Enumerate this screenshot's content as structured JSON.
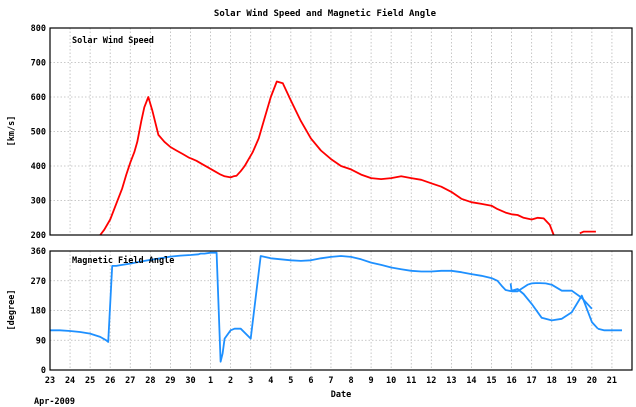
{
  "chart_data": [
    {
      "type": "line",
      "title": "Solar Wind Speed and Magnetic Field Angle",
      "panel_label": "Solar Wind Speed",
      "ylabel": "[km/s]",
      "ylim": [
        200,
        800
      ],
      "yticks": [
        "200",
        "300",
        "400",
        "500",
        "600",
        "700",
        "800"
      ],
      "xlim": [
        0,
        29
      ],
      "grid": true,
      "color": "#ff0000",
      "series": [
        {
          "x": [
            2.5,
            2.7,
            3.0,
            3.3,
            3.6,
            3.8,
            4.0,
            4.2,
            4.35,
            4.55,
            4.7,
            4.9,
            5.1,
            5.4,
            5.7,
            6.0,
            6.3,
            6.6,
            6.9,
            7.1,
            7.3,
            7.6,
            7.9,
            8.2,
            8.5,
            8.7,
            8.9,
            9.0,
            9.15,
            9.3,
            9.5,
            9.7,
            9.9,
            10.1,
            10.4,
            10.7,
            11.0,
            11.3,
            11.6,
            12.0,
            12.5,
            13.0,
            13.5,
            14.0,
            14.5,
            15.0,
            15.5,
            16.0,
            16.5,
            17.0,
            17.5,
            18.0,
            18.5,
            19.0,
            19.5,
            20.0,
            20.5,
            21.0,
            21.5,
            22.0,
            22.3,
            22.7,
            23.0,
            23.3,
            23.6,
            24.0,
            24.3,
            24.6,
            24.9,
            25.1
          ],
          "y": [
            200,
            215,
            245,
            290,
            335,
            375,
            410,
            440,
            470,
            530,
            570,
            600,
            560,
            490,
            470,
            455,
            445,
            435,
            425,
            420,
            415,
            405,
            395,
            385,
            375,
            370,
            368,
            367,
            370,
            372,
            385,
            400,
            420,
            440,
            480,
            540,
            600,
            645,
            640,
            590,
            530,
            480,
            445,
            420,
            400,
            390,
            375,
            365,
            362,
            365,
            370,
            365,
            360,
            350,
            340,
            325,
            305,
            295,
            290,
            285,
            275,
            265,
            260,
            258,
            250,
            245,
            250,
            248,
            230,
            200
          ]
        },
        {
          "x": [
            26.4,
            26.6,
            26.9,
            27.2
          ],
          "y": [
            205,
            210,
            210,
            210
          ]
        }
      ]
    },
    {
      "type": "line",
      "panel_label": "Magnetic Field Angle",
      "ylabel": "[degree]",
      "ylim": [
        0,
        360
      ],
      "yticks": [
        "0",
        "90",
        "180",
        "270",
        "360"
      ],
      "xlabel": "Date",
      "xticks": [
        "23",
        "24",
        "25",
        "26",
        "27",
        "28",
        "29",
        "30",
        "1",
        "2",
        "3",
        "4",
        "5",
        "6",
        "7",
        "8",
        "9",
        "10",
        "11",
        "12",
        "13",
        "14",
        "15",
        "16",
        "17",
        "18",
        "19",
        "20",
        "21"
      ],
      "xlim": [
        0,
        29
      ],
      "grid": true,
      "color": "#1e90ff",
      "series": [
        {
          "x": [
            0.0,
            0.5,
            1.0,
            1.5,
            2.0,
            2.5,
            2.8,
            2.9,
            3.1,
            3.3,
            3.6,
            4.0,
            4.5,
            5.0,
            5.5,
            6.0,
            6.5,
            7.0,
            7.4,
            7.5,
            7.7,
            8.0,
            8.3,
            8.5,
            8.6,
            8.7,
            9.0,
            9.2,
            9.5,
            10.0,
            10.5,
            11.0,
            11.5,
            12.0,
            12.5,
            13.0,
            13.5,
            14.0,
            14.5,
            15.0,
            15.5,
            16.0,
            16.5,
            17.0,
            17.5,
            18.0,
            18.5,
            19.0,
            19.5,
            20.0,
            20.5,
            21.0,
            21.5,
            22.0,
            22.3,
            22.5,
            22.7,
            23.0,
            23.3,
            23.6,
            23.8,
            24.0,
            24.2,
            24.4,
            24.7,
            25.0,
            25.5,
            26.0,
            26.5,
            27.0
          ],
          "y": [
            120,
            120,
            118,
            115,
            110,
            100,
            90,
            85,
            315,
            315,
            318,
            322,
            328,
            333,
            338,
            343,
            346,
            348,
            350,
            352,
            352,
            355,
            355,
            25,
            50,
            95,
            120,
            125,
            125,
            95,
            345,
            338,
            335,
            332,
            330,
            332,
            338,
            342,
            345,
            342,
            335,
            325,
            318,
            310,
            305,
            300,
            298,
            298,
            300,
            300,
            296,
            290,
            285,
            278,
            270,
            255,
            242,
            238,
            238,
            250,
            258,
            262,
            263,
            263,
            262,
            258,
            240,
            240,
            218,
            185
          ]
        },
        {
          "x": [
            22.95,
            23.0,
            23.3,
            23.6,
            24.0,
            24.5,
            25.0,
            25.5,
            26.0,
            26.5,
            27.0,
            27.3
          ],
          "y": [
            262,
            240,
            245,
            230,
            200,
            158,
            150,
            155,
            175,
            225,
            145,
            125
          ]
        },
        {
          "x": [
            27.3,
            27.6,
            28.0,
            28.5
          ],
          "y": [
            125,
            120,
            120,
            120
          ]
        }
      ]
    }
  ],
  "footer_date": "Apr-2009"
}
